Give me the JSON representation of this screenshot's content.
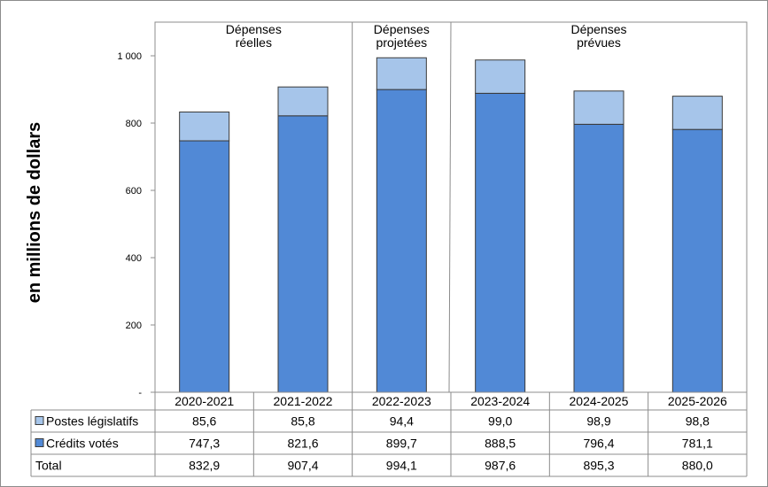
{
  "chart_data": {
    "type": "bar",
    "stacked": true,
    "ylabel": "en millions de dollars",
    "ylim": [
      0,
      1000
    ],
    "yticks": [
      "-",
      "200",
      "400",
      "600",
      "800",
      "1 000"
    ],
    "periods": [
      {
        "label": [
          "Dépenses",
          "réelles"
        ]
      },
      {
        "label": [
          "Dépenses",
          "projetées"
        ]
      },
      {
        "label": [
          "Dépenses",
          "prévues"
        ]
      }
    ],
    "categories": [
      "2020-2021",
      "2021-2022",
      "2022-2023",
      "2023-2024",
      "2024-2025",
      "2025-2026"
    ],
    "series": [
      {
        "name": "Crédits votés",
        "values": [
          747.3,
          821.6,
          899.7,
          888.5,
          796.4,
          781.1
        ],
        "labels": [
          "747,3",
          "821,6",
          "899,7",
          "888,5",
          "796,4",
          "781,1"
        ]
      },
      {
        "name": "Postes législatifs",
        "values": [
          85.6,
          85.8,
          94.4,
          99.0,
          98.9,
          98.8
        ],
        "labels": [
          "85,6",
          "85,8",
          "94,4",
          "99,0",
          "98,9",
          "98,8"
        ]
      }
    ],
    "totals": {
      "name": "Total",
      "labels": [
        "832,9",
        "907,4",
        "994,1",
        "987,6",
        "895,3",
        "880,0"
      ]
    },
    "table_rows_order": [
      "Postes législatifs",
      "Crédits votés",
      "Total"
    ],
    "colors": {
      "Crédits votés": "#5189d6",
      "Postes législatifs": "#a6c5ea"
    },
    "grid": false,
    "legend": "table-left"
  }
}
